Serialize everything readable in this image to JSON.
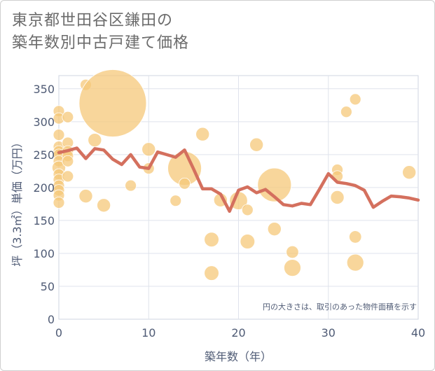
{
  "title_lines": [
    "東京都世田谷区鎌田の",
    "築年数別中古戸建て価格"
  ],
  "chart_data": {
    "type": "scatter",
    "xlabel": "築年数（年）",
    "ylabel": "坪（3.3㎡）単価（万円）",
    "xlim": [
      0,
      40
    ],
    "ylim": [
      0,
      370
    ],
    "xticks": [
      "0",
      "10",
      "20",
      "30",
      "40"
    ],
    "yticks": [
      "0",
      "50",
      "100",
      "150",
      "200",
      "250",
      "300",
      "350"
    ],
    "grid": true,
    "note": "円の大きさは、取引のあった物件面積を示す",
    "bubble_color": "#f5c87a",
    "line_color": "#d4705e",
    "bubbles": [
      {
        "x": 0,
        "y": 316,
        "s": 1
      },
      {
        "x": 0,
        "y": 305,
        "s": 1
      },
      {
        "x": 0,
        "y": 280,
        "s": 1
      },
      {
        "x": 0,
        "y": 262,
        "s": 1
      },
      {
        "x": 0,
        "y": 255,
        "s": 1
      },
      {
        "x": 0,
        "y": 250,
        "s": 1
      },
      {
        "x": 0,
        "y": 240,
        "s": 1
      },
      {
        "x": 0,
        "y": 230,
        "s": 1.2
      },
      {
        "x": 0,
        "y": 220,
        "s": 1
      },
      {
        "x": 0,
        "y": 212,
        "s": 1
      },
      {
        "x": 0,
        "y": 203,
        "s": 1
      },
      {
        "x": 0,
        "y": 196,
        "s": 1
      },
      {
        "x": 0,
        "y": 188,
        "s": 1
      },
      {
        "x": 0,
        "y": 177,
        "s": 1
      },
      {
        "x": 1,
        "y": 307,
        "s": 1
      },
      {
        "x": 1,
        "y": 268,
        "s": 1
      },
      {
        "x": 1,
        "y": 255,
        "s": 1
      },
      {
        "x": 1,
        "y": 248,
        "s": 1
      },
      {
        "x": 1,
        "y": 240,
        "s": 1
      },
      {
        "x": 1,
        "y": 217,
        "s": 1
      },
      {
        "x": 3,
        "y": 356,
        "s": 1
      },
      {
        "x": 3,
        "y": 187,
        "s": 1.2
      },
      {
        "x": 4,
        "y": 272,
        "s": 1.2
      },
      {
        "x": 5,
        "y": 173,
        "s": 1.2
      },
      {
        "x": 6,
        "y": 328,
        "s": 6
      },
      {
        "x": 8,
        "y": 203,
        "s": 1
      },
      {
        "x": 10,
        "y": 258,
        "s": 1.2
      },
      {
        "x": 10,
        "y": 229,
        "s": 1
      },
      {
        "x": 13,
        "y": 180,
        "s": 1
      },
      {
        "x": 14,
        "y": 229,
        "s": 3
      },
      {
        "x": 14,
        "y": 206,
        "s": 1
      },
      {
        "x": 16,
        "y": 281,
        "s": 1.2
      },
      {
        "x": 17,
        "y": 121,
        "s": 1.3
      },
      {
        "x": 17,
        "y": 70,
        "s": 1.3
      },
      {
        "x": 18,
        "y": 181,
        "s": 1.2
      },
      {
        "x": 20,
        "y": 180,
        "s": 1.6
      },
      {
        "x": 21,
        "y": 166,
        "s": 1
      },
      {
        "x": 21,
        "y": 118,
        "s": 1.3
      },
      {
        "x": 22,
        "y": 265,
        "s": 1.2
      },
      {
        "x": 24,
        "y": 204,
        "s": 3
      },
      {
        "x": 24,
        "y": 137,
        "s": 1.2
      },
      {
        "x": 26,
        "y": 102,
        "s": 1.1
      },
      {
        "x": 26,
        "y": 78,
        "s": 1.5
      },
      {
        "x": 31,
        "y": 227,
        "s": 1
      },
      {
        "x": 31,
        "y": 217,
        "s": 1
      },
      {
        "x": 31,
        "y": 185,
        "s": 1.2
      },
      {
        "x": 32,
        "y": 315,
        "s": 1
      },
      {
        "x": 33,
        "y": 334,
        "s": 1
      },
      {
        "x": 33,
        "y": 125,
        "s": 1.1
      },
      {
        "x": 33,
        "y": 86,
        "s": 1.5
      },
      {
        "x": 39,
        "y": 223,
        "s": 1.2
      }
    ],
    "series": [
      {
        "x": [
          0,
          1,
          2,
          3,
          4,
          5,
          6,
          7,
          8,
          9,
          10,
          11,
          12,
          13,
          14,
          15,
          16,
          17,
          18,
          19,
          20,
          21,
          22,
          23,
          24,
          25,
          26,
          27,
          28,
          29,
          30,
          31,
          32,
          33,
          34,
          35,
          36,
          37,
          38,
          39,
          40
        ],
        "values": [
          253,
          256,
          260,
          244,
          259,
          257,
          243,
          235,
          250,
          231,
          229,
          254,
          250,
          246,
          257,
          228,
          198,
          198,
          190,
          164,
          196,
          201,
          192,
          197,
          186,
          174,
          172,
          176,
          174,
          197,
          221,
          208,
          206,
          203,
          196,
          170,
          179,
          187,
          186,
          184,
          181
        ]
      }
    ]
  }
}
